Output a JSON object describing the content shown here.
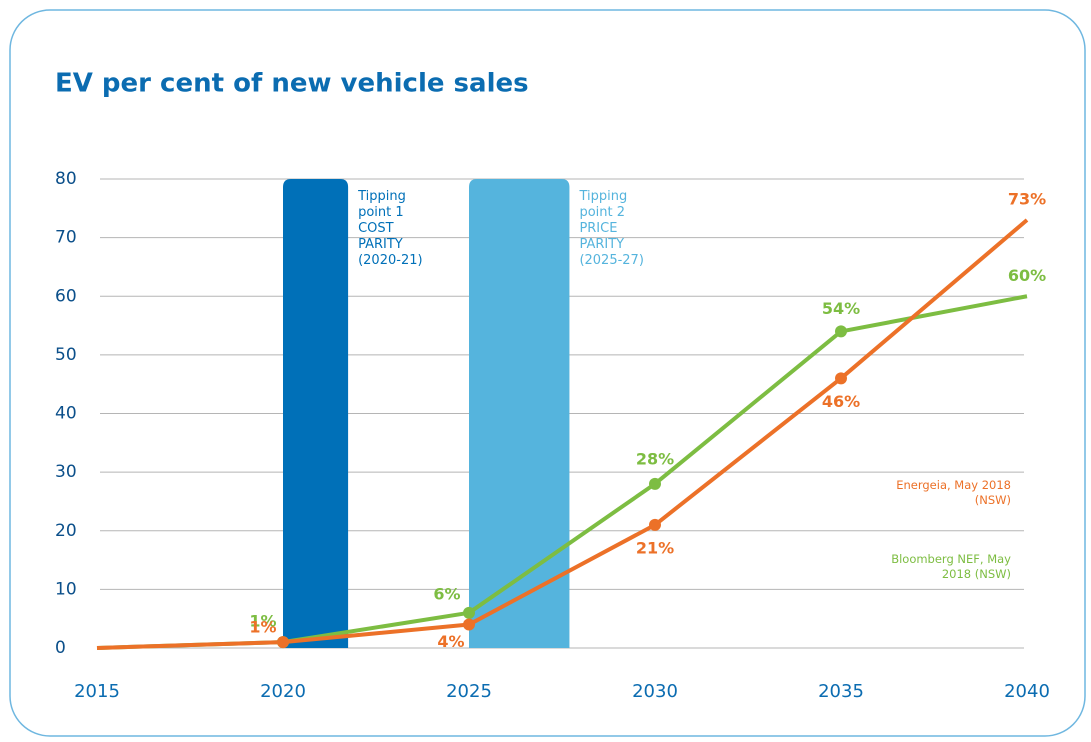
{
  "chart_data": {
    "type": "line",
    "title": "EV per cent of new vehicle sales",
    "x": [
      2015,
      2020,
      2025,
      2030,
      2035,
      2040
    ],
    "xlim": [
      2015,
      2040
    ],
    "xticks": [
      2015,
      2020,
      2025,
      2030,
      2035,
      2040
    ],
    "ylim": [
      0,
      80
    ],
    "yticks": [
      0,
      10,
      20,
      30,
      40,
      50,
      60,
      70,
      80
    ],
    "grid": true,
    "series": [
      {
        "name": "Bloomberg NEF, May 2018 (NSW)",
        "color": "#7dbd42",
        "values": [
          0,
          1,
          6,
          28,
          54,
          60
        ],
        "value_labels": [
          null,
          "1%",
          "6%",
          "28%",
          "54%",
          "60%"
        ]
      },
      {
        "name": "Energeia, May 2018 (NSW)",
        "color": "#ec7128",
        "values": [
          0,
          1,
          4,
          21,
          46,
          73
        ],
        "value_labels": [
          null,
          "1%",
          "4%",
          "21%",
          "46%",
          "73%"
        ]
      }
    ],
    "bands": [
      {
        "x0": 2020,
        "x1": 2021.75,
        "color": "#0070b8",
        "label": "Tipping point 1 COST PARITY (2020-21)"
      },
      {
        "x0": 2025,
        "x1": 2027.7,
        "color": "#55b4dd",
        "label": "Tipping point 2 PRICE PARITY (2025-27)"
      }
    ]
  }
}
